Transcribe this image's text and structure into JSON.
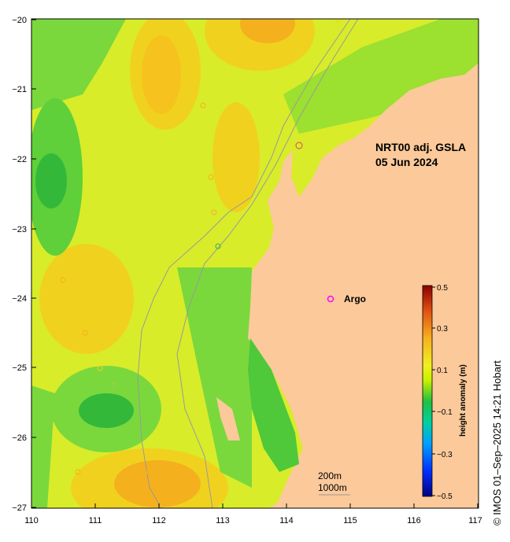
{
  "map": {
    "title_line1": "NRT00 adj. GSLA",
    "title_line2": "05 Jun 2024",
    "credit": "© IMOS 01–Sep–2025 14:21 Hobart",
    "x_ticks": [
      "110",
      "111",
      "112",
      "113",
      "114",
      "115",
      "116",
      "117"
    ],
    "y_ticks": [
      "−20",
      "−21",
      "−22",
      "−23",
      "−24",
      "−25",
      "−26",
      "−27"
    ],
    "legend": {
      "argo_label": "Argo",
      "argo_color": "#ff00ff"
    },
    "depth_labels": [
      "200m",
      "1000m"
    ],
    "colorbar": {
      "title": "height anomaly (m)",
      "ticks": [
        "0.5",
        "0.3",
        "0.1",
        "−0.1",
        "−0.3",
        "−0.5"
      ]
    },
    "colors": {
      "land": "#fbc99a",
      "ocean_base": "#d8ec2a",
      "contour": "#9a9a9a"
    }
  }
}
